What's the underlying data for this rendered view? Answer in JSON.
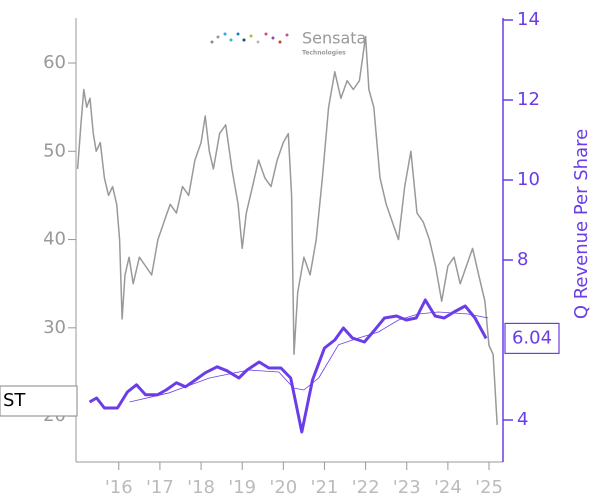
{
  "chart_data": {
    "type": "line",
    "logo": {
      "name": "Sensata",
      "sub": "Technologies"
    },
    "ticker": "ST",
    "y2label": "Q Revenue Per Share",
    "xlim": [
      2014.96,
      2025.34
    ],
    "xticks": [
      {
        "value": 2016,
        "label": "'16"
      },
      {
        "value": 2017,
        "label": "'17"
      },
      {
        "value": 2018,
        "label": "'18"
      },
      {
        "value": 2019,
        "label": "'19"
      },
      {
        "value": 2020,
        "label": "'20"
      },
      {
        "value": 2021,
        "label": "'21"
      },
      {
        "value": 2022,
        "label": "'22"
      },
      {
        "value": 2023,
        "label": "'23"
      },
      {
        "value": 2024,
        "label": "'24"
      },
      {
        "value": 2025,
        "label": "'25"
      }
    ],
    "ylim": [
      14.8,
      65.1
    ],
    "yticks": [
      20,
      30,
      40,
      50,
      60
    ],
    "y2lim": [
      2.95,
      14.05
    ],
    "y2ticks": [
      4,
      8,
      10,
      12,
      14
    ],
    "series": [
      {
        "color": "#999999",
        "width": 1.5,
        "x": [
          2015.0,
          2015.08,
          2015.15,
          2015.22,
          2015.3,
          2015.38,
          2015.45,
          2015.55,
          2015.65,
          2015.75,
          2015.85,
          2015.95,
          2016.02,
          2016.08,
          2016.15,
          2016.25,
          2016.35,
          2016.5,
          2016.65,
          2016.8,
          2016.95,
          2017.1,
          2017.25,
          2017.4,
          2017.55,
          2017.7,
          2017.85,
          2018.0,
          2018.1,
          2018.2,
          2018.3,
          2018.45,
          2018.6,
          2018.75,
          2018.9,
          2019.0,
          2019.1,
          2019.25,
          2019.4,
          2019.55,
          2019.7,
          2019.85,
          2020.0,
          2020.12,
          2020.2,
          2020.26,
          2020.35,
          2020.5,
          2020.65,
          2020.8,
          2020.95,
          2021.1,
          2021.25,
          2021.4,
          2021.55,
          2021.7,
          2021.85,
          2022.0,
          2022.08,
          2022.2,
          2022.35,
          2022.5,
          2022.65,
          2022.8,
          2022.95,
          2023.1,
          2023.25,
          2023.4,
          2023.55,
          2023.7,
          2023.85,
          2024.0,
          2024.15,
          2024.3,
          2024.45,
          2024.6,
          2024.75,
          2024.9,
          2025.0,
          2025.1,
          2025.2
        ],
        "values": [
          48,
          53,
          57,
          55,
          56,
          52,
          50,
          51,
          47,
          45,
          46,
          44,
          40,
          31,
          36,
          38,
          35,
          38,
          37,
          36,
          40,
          42,
          44,
          43,
          46,
          45,
          49,
          51,
          54,
          50,
          48,
          52,
          53,
          48,
          44,
          39,
          43,
          46,
          49,
          47,
          46,
          49,
          51,
          52,
          45,
          27,
          34,
          38,
          36,
          40,
          47,
          55,
          59,
          56,
          58,
          57,
          58,
          63,
          57,
          55,
          47,
          44,
          42,
          40,
          46,
          50,
          43,
          42,
          40,
          37,
          33,
          37,
          38,
          35,
          37,
          39,
          36,
          33,
          28,
          27,
          19
        ]
      },
      {
        "color": "#6a3de8",
        "width": 3,
        "axis": "y2",
        "x": [
          2015.29,
          2015.46,
          2015.65,
          2015.97,
          2016.21,
          2016.43,
          2016.65,
          2016.94,
          2017.15,
          2017.4,
          2017.62,
          2017.86,
          2018.1,
          2018.39,
          2018.63,
          2018.92,
          2019.12,
          2019.41,
          2019.65,
          2019.94,
          2020.18,
          2020.45,
          2020.71,
          2021.0,
          2021.25,
          2021.46,
          2021.68,
          2021.97,
          2022.22,
          2022.46,
          2022.75,
          2022.99,
          2023.23,
          2023.45,
          2023.69,
          2023.91,
          2024.15,
          2024.42,
          2024.66,
          2024.93
        ],
        "values": [
          4.45,
          4.55,
          4.3,
          4.3,
          4.7,
          4.88,
          4.63,
          4.63,
          4.75,
          4.93,
          4.83,
          5.0,
          5.18,
          5.33,
          5.23,
          5.05,
          5.25,
          5.45,
          5.3,
          5.3,
          5.05,
          3.7,
          5.0,
          5.8,
          6.0,
          6.3,
          6.05,
          5.95,
          6.25,
          6.55,
          6.6,
          6.5,
          6.55,
          7.0,
          6.6,
          6.55,
          6.7,
          6.85,
          6.55,
          6.04
        ]
      },
      {
        "color": "#6a3de8",
        "width": 0.8,
        "axis": "y2",
        "x": [
          2016.26,
          2017.23,
          2018.2,
          2019.16,
          2019.89,
          2020.25,
          2020.5,
          2020.86,
          2021.34,
          2021.83,
          2022.31,
          2022.8,
          2023.28,
          2023.77,
          2024.49,
          2024.98
        ],
        "values": [
          4.45,
          4.68,
          5.05,
          5.25,
          5.2,
          4.8,
          4.75,
          5.05,
          5.88,
          6.05,
          6.2,
          6.5,
          6.65,
          6.7,
          6.65,
          6.55
        ]
      }
    ]
  }
}
